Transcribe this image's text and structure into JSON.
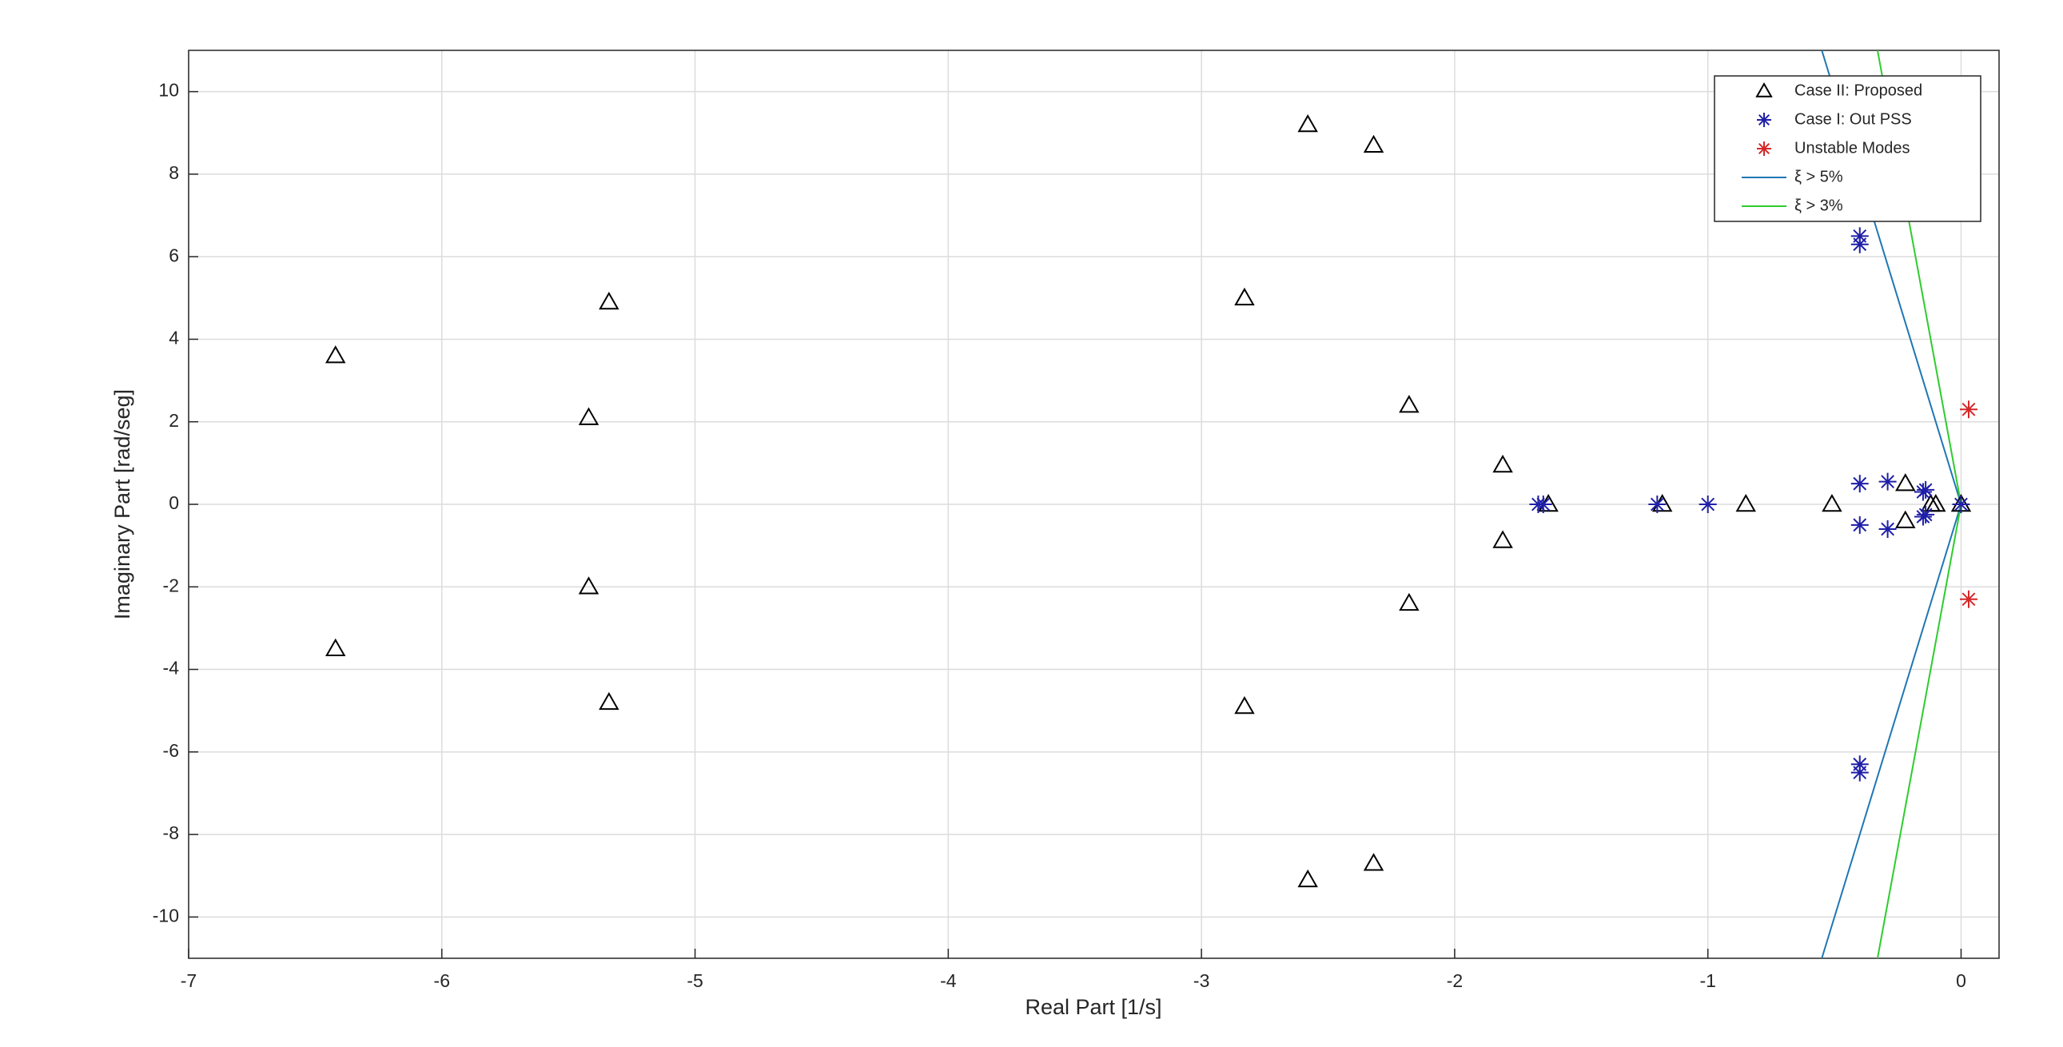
{
  "chart_data": {
    "type": "scatter",
    "xlabel": "Real Part [1/s]",
    "ylabel": "Imaginary Part [rad/seg]",
    "xlim": [
      -7,
      0.15
    ],
    "ylim": [
      -11,
      11
    ],
    "xticks": [
      -7,
      -6,
      -5,
      -4,
      -3,
      -2,
      -1,
      0
    ],
    "yticks": [
      -10,
      -8,
      -6,
      -4,
      -2,
      0,
      2,
      4,
      6,
      8,
      10
    ],
    "grid": true,
    "legend": "northeast",
    "series": [
      {
        "name": "Case II: Proposed",
        "color": "#000000",
        "marker": "triangle",
        "x": [
          -6.42,
          -6.42,
          -5.42,
          -5.42,
          -5.34,
          -5.34,
          -2.83,
          -2.83,
          -2.58,
          -2.58,
          -2.32,
          -2.32,
          -2.18,
          -2.18,
          -1.81,
          -1.81,
          -1.63,
          -1.18,
          -0.85,
          -0.51,
          -0.22,
          -0.22,
          -0.12,
          -0.1,
          0
        ],
        "values": [
          3.6,
          -3.5,
          2.1,
          -2.0,
          4.9,
          -4.8,
          5.0,
          -4.9,
          9.2,
          -9.1,
          8.7,
          -8.7,
          2.4,
          -2.4,
          0.95,
          -0.88,
          0,
          0,
          0,
          0,
          0.5,
          -0.4,
          0,
          0,
          0
        ]
      },
      {
        "name": "Case I: Out PSS",
        "color": "#1f1fa8",
        "marker": "asterisk",
        "x": [
          -0.4,
          -0.4,
          -0.4,
          -0.4,
          -1.67,
          -1.65,
          -1.2,
          -1.0,
          -0.4,
          -0.4,
          -0.29,
          -0.29,
          -0.15,
          -0.15,
          -0.14,
          -0.14,
          0
        ],
        "values": [
          6.5,
          6.3,
          -6.3,
          -6.5,
          0,
          0,
          0,
          0,
          0.5,
          -0.5,
          0.55,
          -0.6,
          0.3,
          -0.3,
          0.35,
          -0.25,
          0
        ]
      },
      {
        "name": "Unstable Modes",
        "color": "#d62728",
        "marker": "asterisk",
        "x": [
          0.03,
          0.03
        ],
        "values": [
          2.3,
          -2.3
        ]
      },
      {
        "name": "ξ > 5%",
        "color": "#1f77b4",
        "marker": "line",
        "x": [
          -0.55,
          0,
          -0.55
        ],
        "values": [
          11,
          0,
          -11
        ]
      },
      {
        "name": "ξ > 3%",
        "color": "#2ecc2e",
        "marker": "line",
        "x": [
          -0.33,
          0,
          -0.33
        ],
        "values": [
          11,
          0,
          -11
        ]
      }
    ]
  }
}
